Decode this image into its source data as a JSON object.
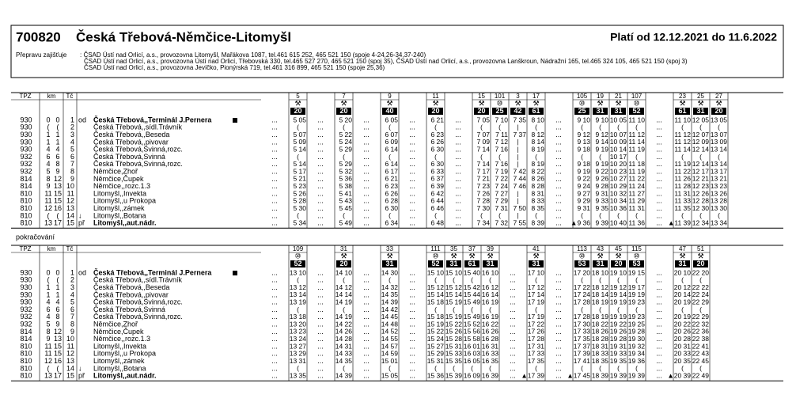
{
  "header": {
    "number": "700820",
    "title": "Česká Třebová-Němčice-Litomyšl",
    "validity": "Platí od 12.12.2021 do 11.6.2022"
  },
  "carriers": {
    "label": "Přepravu zajišťuje",
    "lines": [
      ": ČSAD Ústí nad Orlicí, a.s., provozovna Litomyšl, Mařákova 1087, tel.461 615 252, 465 521 150 (spoje 4-24,26-34,37-240)",
      "ČSAD Ústí nad Orlicí, a.s., provozovna Ústí nad Orlicí, Třebovská 330, tel.465 527 270, 465 521 150 (spoj 35), ČSAD Ústí nad Orlicí, a.s., provozovna Lanškroun, Nádražní 165, tel.465 324 105, 465 521 150 (spoj 3)",
      "ČSAD Ústí nad Orlicí, a.s., provozovna Jevíčko, Pionýrská 719, tel.461 316 899, 465 521 150 (spoje 25,36)"
    ]
  },
  "columns": {
    "tpz": "TPZ",
    "km": "km",
    "tc": "Tč"
  },
  "stops": [
    {
      "tpz": 930,
      "km1": 0,
      "km2": 0,
      "tc": 1,
      "flag": "od",
      "name": "Česká Třebová,,Terminál J.Pernera"
    },
    {
      "tpz": 930,
      "km1": "(",
      "km2": "(",
      "tc": 2,
      "name": "Česká Třebová,,sídl.Trávník"
    },
    {
      "tpz": 930,
      "km1": 1,
      "km2": 1,
      "tc": 3,
      "name": "Česká Třebová,,Beseda"
    },
    {
      "tpz": 930,
      "km1": 1,
      "km2": 1,
      "tc": 4,
      "name": "Česká Třebová,,pivovar"
    },
    {
      "tpz": 930,
      "km1": 4,
      "km2": 4,
      "tc": 5,
      "name": "Česká Třebová,Svinná,rozc."
    },
    {
      "tpz": 932,
      "km1": 6,
      "km2": 6,
      "tc": 6,
      "name": "Česká Třebová,Svinná"
    },
    {
      "tpz": 932,
      "km1": 4,
      "km2": 8,
      "tc": 7,
      "name": "Česká Třebová,Svinná,rozc."
    },
    {
      "tpz": 932,
      "km1": 5,
      "km2": 9,
      "tc": 8,
      "name": "Němčice,Zhoř"
    },
    {
      "tpz": 814,
      "km1": 8,
      "km2": 12,
      "tc": 9,
      "name": "Němčice,Čupek"
    },
    {
      "tpz": 814,
      "km1": 9,
      "km2": 13,
      "tc": 10,
      "name": "Němčice,,rozc.1.3"
    },
    {
      "tpz": 810,
      "km1": 11,
      "km2": 15,
      "tc": 11,
      "name": "Litomyšl,,Invekta"
    },
    {
      "tpz": 810,
      "km1": 11,
      "km2": 15,
      "tc": 12,
      "name": "Litomyšl,,u Prokopa"
    },
    {
      "tpz": 810,
      "km1": 12,
      "km2": 16,
      "tc": 13,
      "name": "Litomyšl,,zámek"
    },
    {
      "tpz": 810,
      "km1": "(",
      "km2": "(",
      "tc": 14,
      "flag": "↓",
      "name": "Litomyšl,,Botana"
    },
    {
      "tpz": 810,
      "km1": 13,
      "km2": 17,
      "tc": 15,
      "flag": "př",
      "name": "Litomyšl,,aut.nádr."
    }
  ],
  "filler": "...",
  "continuation": "pokračování",
  "parts": [
    {
      "groups": [
        [
          {
            "no": 5,
            "symbol": "⚒",
            "code": 20,
            "times": [
              "5 05",
              "(",
              "5 07",
              "5 09",
              "5 14",
              "(",
              "5 14",
              "5 17",
              "5 21",
              "5 23",
              "5 26",
              "5 28",
              "5 30",
              "(",
              "5 34"
            ]
          }
        ],
        [
          {
            "no": 7,
            "symbol": "⚒",
            "code": 20,
            "times": [
              "5 20",
              "(",
              "5 22",
              "5 24",
              "5 29",
              "(",
              "5 29",
              "5 32",
              "5 36",
              "5 38",
              "5 41",
              "5 43",
              "5 45",
              "(",
              "5 49"
            ]
          }
        ],
        [
          {
            "no": 9,
            "symbol": "⚒",
            "code": 40,
            "times": [
              "6 05",
              "(",
              "6 07",
              "6 09",
              "6 14",
              "(",
              "6 14",
              "6 17",
              "6 21",
              "6 23",
              "6 26",
              "6 28",
              "6 30",
              "(",
              "6 34"
            ]
          }
        ],
        [
          {
            "no": 11,
            "symbol": "⚒",
            "code": 20,
            "times": [
              "6 21",
              "(",
              "6 23",
              "6 26",
              "6 30",
              "(",
              "6 30",
              "6 33",
              "6 37",
              "6 39",
              "6 42",
              "6 44",
              "6 46",
              "(",
              "6 48"
            ]
          }
        ],
        [
          {
            "no": 15,
            "symbol": "⚒",
            "code": 20,
            "times": [
              "7 05",
              "(",
              "7 07",
              "7 09",
              "7 14",
              "(",
              "7 14",
              "7 17",
              "7 21",
              "7 23",
              "7 26",
              "7 28",
              "7 30",
              "(",
              "7 34"
            ]
          },
          {
            "no": 101,
            "symbol": "⑩",
            "code": 25,
            "times": [
              "7 10",
              "(",
              "7 11",
              "7 12",
              "7 16",
              "(",
              "7 16",
              "7 19",
              "7 22",
              "7 24",
              "7 27",
              "7 29",
              "7 31",
              "(",
              "7 32"
            ]
          },
          {
            "no": 3,
            "symbol": "⚒",
            "code": 42,
            "times": [
              "7 35",
              "|",
              "7 37",
              "|",
              "|",
              "|",
              "|",
              "7 42",
              "7 44",
              "7 46",
              "|",
              "|",
              "7 50",
              "|",
              "7 55"
            ]
          },
          {
            "no": 17,
            "symbol": "⚒",
            "code": 61,
            "times": [
              "8 10",
              "(",
              "8 12",
              "8 14",
              "8 19",
              "(",
              "8 19",
              "8 22",
              "8 26",
              "8 28",
              "8 31",
              "8 33",
              "8 35",
              "(",
              "8 39"
            ]
          }
        ],
        [
          {
            "no": 105,
            "symbol": "⑩",
            "code": 25,
            "times": [
              "9 10",
              "(",
              "9 12",
              "9 13",
              "9 18",
              "(",
              "9 18",
              "9 19",
              "9 22",
              "9 24",
              "9 27",
              "9 29",
              "9 31",
              "(",
              "▲9 36"
            ]
          },
          {
            "no": 19,
            "symbol": "⚒",
            "code": 31,
            "times": [
              "9 10",
              "(",
              "9 12",
              "9 14",
              "9 19",
              "(",
              "9 19",
              "9 22",
              "9 26",
              "9 28",
              "9 31",
              "9 33",
              "9 35",
              "(",
              "9 39"
            ]
          },
          {
            "no": 21,
            "symbol": "⚒",
            "code": 31,
            "times": [
              "10 05",
              "(",
              "10 07",
              "10 09",
              "10 14",
              "10 17",
              "10 20",
              "10 23",
              "10 27",
              "10 29",
              "10 32",
              "10 34",
              "10 36",
              "(",
              "10 40"
            ]
          },
          {
            "no": 107,
            "symbol": "⑩",
            "code": 52,
            "times": [
              "11 10",
              "(",
              "11 12",
              "11 14",
              "11 19",
              "(",
              "11 18",
              "11 19",
              "11 22",
              "11 24",
              "11 27",
              "11 29",
              "11 31",
              "(",
              "11 36"
            ]
          }
        ],
        [
          {
            "no": 23,
            "symbol": "⚒",
            "code": 61,
            "times": [
              "11 10",
              "(",
              "11 12",
              "11 12",
              "11 14",
              "(",
              "11 19",
              "11 22",
              "11 26",
              "11 28",
              "11 31",
              "11 33",
              "11 35",
              "(",
              "▲11 39"
            ]
          },
          {
            "no": 25,
            "symbol": "⚒",
            "code": 31,
            "times": [
              "12 05",
              "(",
              "12 07",
              "12 09",
              "12 14",
              "(",
              "12 14",
              "12 17",
              "12 21",
              "12 23",
              "12 26",
              "12 28",
              "12 30",
              "(",
              "12 34"
            ]
          },
          {
            "no": 27,
            "symbol": "⚒",
            "code": 20,
            "times": [
              "13 05",
              "(",
              "13 07",
              "13 09",
              "13 14",
              "(",
              "13 14",
              "13 17",
              "13 21",
              "13 23",
              "13 26",
              "13 28",
              "13 30",
              "(",
              "13 34"
            ]
          }
        ]
      ]
    },
    {
      "groups": [
        [
          {
            "no": 109,
            "symbol": "⑩",
            "code": 52,
            "times": [
              "13 10",
              "(",
              "13 12",
              "13 14",
              "13 19",
              "(",
              "13 18",
              "13 20",
              "13 23",
              "13 24",
              "13 27",
              "13 29",
              "13 31",
              "(",
              "13 35"
            ]
          }
        ],
        [
          {
            "no": 31,
            "symbol": "⚒",
            "code": 20,
            "times": [
              "14 10",
              "(",
              "14 12",
              "14 14",
              "14 19",
              "(",
              "14 19",
              "14 22",
              "14 26",
              "14 28",
              "14 31",
              "14 33",
              "14 35",
              "(",
              "14 39"
            ]
          }
        ],
        [
          {
            "no": 33,
            "symbol": "⚒",
            "code": 31,
            "times": [
              "14 30",
              "(",
              "14 32",
              "14 35",
              "14 39",
              "14 42",
              "14 45",
              "14 48",
              "14 52",
              "14 55",
              "14 57",
              "14 59",
              "15 01",
              "(",
              "15 05"
            ]
          }
        ],
        [
          {
            "no": 111,
            "symbol": "⑩",
            "code": 52,
            "times": [
              "15 10",
              "(",
              "15 12",
              "15 14",
              "15 18",
              "(",
              "15 18",
              "15 19",
              "15 22",
              "15 24",
              "15 27",
              "15 29",
              "15 31",
              "(",
              "15 36"
            ]
          },
          {
            "no": 35,
            "symbol": "⚒",
            "code": 31,
            "times": [
              "15 10",
              "(",
              "15 12",
              "15 14",
              "15 19",
              "(",
              "15 19",
              "15 22",
              "15 26",
              "15 28",
              "15 31",
              "15 33",
              "15 35",
              "(",
              "15 39"
            ]
          },
          {
            "no": 37,
            "symbol": "⚒",
            "code": 61,
            "times": [
              "15 40",
              "(",
              "15 42",
              "15 44",
              "15 49",
              "(",
              "15 49",
              "15 52",
              "15 56",
              "15 58",
              "16 01",
              "16 03",
              "16 05",
              "(",
              "16 09"
            ]
          },
          {
            "no": 39,
            "symbol": "⚒",
            "code": 31,
            "times": [
              "16 10",
              "(",
              "16 12",
              "16 14",
              "16 19",
              "(",
              "16 19",
              "16 22",
              "16 26",
              "16 28",
              "16 31",
              "16 33",
              "16 35",
              "(",
              "16 39"
            ]
          }
        ],
        [
          {
            "no": 41,
            "symbol": "⚒",
            "code": 31,
            "times": [
              "17 10",
              "(",
              "17 12",
              "17 14",
              "17 19",
              "(",
              "17 19",
              "17 22",
              "17 26",
              "17 28",
              "17 31",
              "17 33",
              "17 35",
              "(",
              "▲17 39"
            ]
          }
        ],
        [
          {
            "no": 113,
            "symbol": "⑩",
            "code": 53,
            "times": [
              "17 20",
              "(",
              "17 22",
              "17 24",
              "17 28",
              "(",
              "17 28",
              "17 30",
              "17 33",
              "17 35",
              "17 37",
              "17 39",
              "17 41",
              "(",
              "▲17 45"
            ]
          },
          {
            "no": 43,
            "symbol": "⚒",
            "code": 31,
            "times": [
              "18 10",
              "(",
              "18 12",
              "18 14",
              "18 19",
              "(",
              "18 19",
              "18 22",
              "18 26",
              "18 28",
              "18 31",
              "18 33",
              "18 35",
              "(",
              "18 39"
            ]
          },
          {
            "no": 45,
            "symbol": "⚒",
            "code": 20,
            "times": [
              "19 10",
              "(",
              "19 12",
              "19 14",
              "19 19",
              "(",
              "19 19",
              "19 22",
              "19 26",
              "19 28",
              "19 31",
              "19 33",
              "19 35",
              "(",
              "19 39"
            ]
          },
          {
            "no": 115,
            "symbol": "⑩",
            "code": 53,
            "times": [
              "19 15",
              "(",
              "19 17",
              "19 19",
              "19 23",
              "(",
              "19 23",
              "19 25",
              "19 28",
              "19 30",
              "19 32",
              "19 34",
              "19 36",
              "(",
              "19 39"
            ]
          }
        ],
        [
          {
            "no": 47,
            "symbol": "⚒",
            "code": 31,
            "times": [
              "20 10",
              "(",
              "20 12",
              "20 14",
              "20 19",
              "(",
              "20 19",
              "20 22",
              "20 26",
              "20 28",
              "20 31",
              "20 33",
              "20 35",
              "(",
              "▲20 39"
            ]
          },
          {
            "no": 51,
            "symbol": "⚒",
            "code": 20,
            "times": [
              "22 20",
              "(",
              "22 22",
              "22 24",
              "22 29",
              "(",
              "22 29",
              "22 32",
              "22 36",
              "22 38",
              "22 41",
              "22 43",
              "22 45",
              "(",
              "22 49"
            ]
          }
        ]
      ]
    }
  ]
}
